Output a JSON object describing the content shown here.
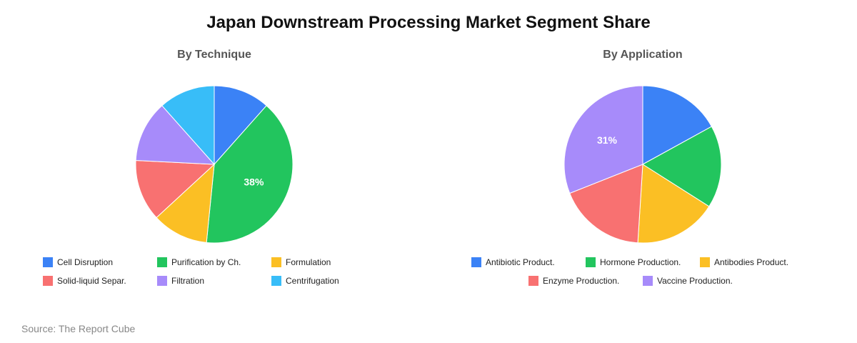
{
  "title": "Japan Downstream Processing Market Segment Share",
  "source": "Source: The Report Cube",
  "chart_data": [
    {
      "type": "pie",
      "title": "By Technique",
      "categories": [
        "Cell Disruption",
        "Purification by Ch.",
        "Formulation",
        "Solid-liquid Separ.",
        "Filtration",
        "Centrifugation"
      ],
      "values": [
        11,
        38,
        11,
        12,
        12,
        11
      ],
      "colors": [
        "#3b82f6",
        "#22c55e",
        "#fbbf24",
        "#f87171",
        "#a78bfa",
        "#38bdf8"
      ],
      "labels": [
        "",
        "38%",
        "",
        "",
        "",
        ""
      ],
      "legend_rows": [
        [
          0,
          1,
          2
        ],
        [
          3,
          4,
          5
        ]
      ]
    },
    {
      "type": "pie",
      "title": "By Application",
      "categories": [
        "Antibiotic Product.",
        "Hormone Production.",
        "Antibodies Product.",
        "Enzyme Production.",
        "Vaccine Production."
      ],
      "values": [
        17,
        17,
        17,
        18,
        31
      ],
      "colors": [
        "#3b82f6",
        "#22c55e",
        "#fbbf24",
        "#f87171",
        "#a78bfa"
      ],
      "labels": [
        "",
        "",
        "",
        "",
        "31%"
      ],
      "legend_rows": [
        [
          0,
          1,
          2
        ],
        [
          3,
          4
        ]
      ]
    }
  ]
}
